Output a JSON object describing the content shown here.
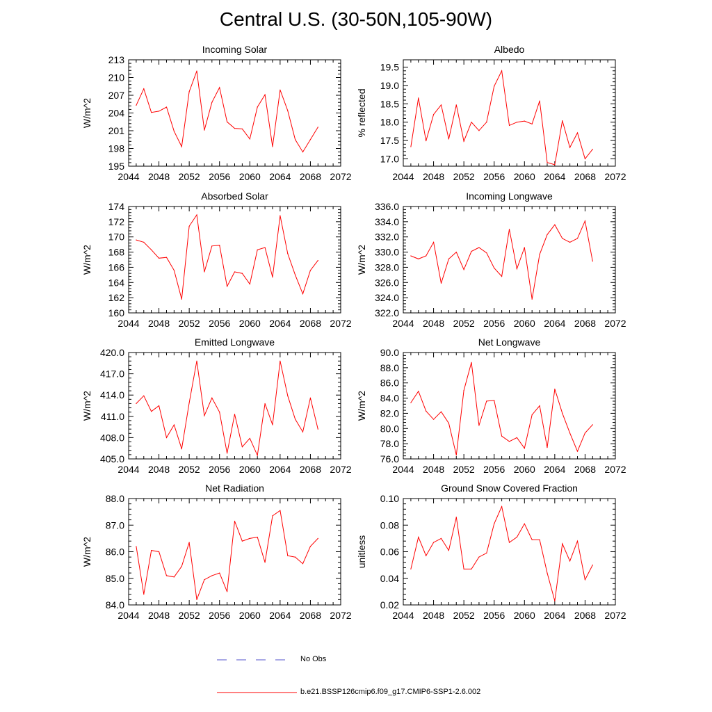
{
  "title": "Central U.S. (30-50N,105-90W)",
  "colors": {
    "model": "#ff0000",
    "obs": "#5555cc",
    "axis": "#000000"
  },
  "legend": {
    "obs_label": "No Obs",
    "model_label": "b.e21.BSSP126cmip6.f09_g17.CMIP6-SSP1-2.6.002"
  },
  "chart_data": [
    {
      "type": "line",
      "title": "Incoming Solar",
      "ylabel": "W/m^2",
      "xlim": [
        2044,
        2072
      ],
      "ylim": [
        195,
        213
      ],
      "xticks": [
        "2044",
        "2048",
        "2052",
        "2056",
        "2060",
        "2064",
        "2068",
        "2072"
      ],
      "yticks": [
        "195",
        "198",
        "201",
        "204",
        "207",
        "210",
        "213"
      ],
      "x": [
        2045,
        2046,
        2047,
        2048,
        2049,
        2050,
        2051,
        2052,
        2053,
        2054,
        2055,
        2056,
        2057,
        2058,
        2059,
        2060,
        2061,
        2062,
        2063,
        2064,
        2065,
        2066,
        2067,
        2068,
        2069
      ],
      "series": [
        {
          "values": [
            205.3,
            208.1,
            204.1,
            204.3,
            205.0,
            200.9,
            198.3,
            207.6,
            211.1,
            201.1,
            205.8,
            208.3,
            202.5,
            201.4,
            201.3,
            199.6,
            205.0,
            207.1,
            198.3,
            207.9,
            204.4,
            199.5,
            197.4,
            199.5,
            201.6
          ]
        }
      ]
    },
    {
      "type": "line",
      "title": "Albedo",
      "ylabel": "% reflected",
      "xlim": [
        2044,
        2072
      ],
      "ylim": [
        16.8,
        19.7
      ],
      "xticks": [
        "2044",
        "2048",
        "2052",
        "2056",
        "2060",
        "2064",
        "2068",
        "2072"
      ],
      "yticks": [
        "17.0",
        "17.5",
        "18.0",
        "18.5",
        "19.0",
        "19.5"
      ],
      "x": [
        2045,
        2046,
        2047,
        2048,
        2049,
        2050,
        2051,
        2052,
        2053,
        2054,
        2055,
        2056,
        2057,
        2058,
        2059,
        2060,
        2061,
        2062,
        2063,
        2064,
        2065,
        2066,
        2067,
        2068,
        2069
      ],
      "series": [
        {
          "values": [
            17.33,
            18.66,
            17.49,
            18.21,
            18.47,
            17.54,
            18.47,
            17.48,
            18.0,
            17.77,
            18.0,
            18.98,
            19.4,
            17.91,
            18.0,
            18.03,
            17.95,
            18.58,
            16.9,
            16.84,
            18.04,
            17.31,
            17.71,
            17.0,
            17.26
          ]
        }
      ]
    },
    {
      "type": "line",
      "title": "Absorbed Solar",
      "ylabel": "W/m^2",
      "xlim": [
        2044,
        2072
      ],
      "ylim": [
        160,
        174
      ],
      "xticks": [
        "2044",
        "2048",
        "2052",
        "2056",
        "2060",
        "2064",
        "2068",
        "2072"
      ],
      "yticks": [
        "160",
        "162",
        "164",
        "166",
        "168",
        "170",
        "172",
        "174"
      ],
      "x": [
        2045,
        2046,
        2047,
        2048,
        2049,
        2050,
        2051,
        2052,
        2053,
        2054,
        2055,
        2056,
        2057,
        2058,
        2059,
        2060,
        2061,
        2062,
        2063,
        2064,
        2065,
        2066,
        2067,
        2068,
        2069
      ],
      "series": [
        {
          "values": [
            169.6,
            169.3,
            168.3,
            167.2,
            167.3,
            165.6,
            161.8,
            171.4,
            172.9,
            165.4,
            168.8,
            168.9,
            163.5,
            165.4,
            165.2,
            163.8,
            168.3,
            168.6,
            164.7,
            172.8,
            167.8,
            165.0,
            162.5,
            165.6,
            166.9
          ]
        }
      ]
    },
    {
      "type": "line",
      "title": "Incoming Longwave",
      "ylabel": "W/m^2",
      "xlim": [
        2044,
        2072
      ],
      "ylim": [
        322,
        336
      ],
      "xticks": [
        "2044",
        "2048",
        "2052",
        "2056",
        "2060",
        "2064",
        "2068",
        "2072"
      ],
      "yticks": [
        "322.0",
        "324.0",
        "326.0",
        "328.0",
        "330.0",
        "332.0",
        "334.0",
        "336.0"
      ],
      "x": [
        2045,
        2046,
        2047,
        2048,
        2049,
        2050,
        2051,
        2052,
        2053,
        2054,
        2055,
        2056,
        2057,
        2058,
        2059,
        2060,
        2061,
        2062,
        2063,
        2064,
        2065,
        2066,
        2067,
        2068,
        2069
      ],
      "series": [
        {
          "values": [
            329.5,
            329.1,
            329.5,
            331.3,
            325.9,
            329.1,
            330.0,
            327.7,
            330.1,
            330.6,
            329.9,
            327.9,
            326.8,
            333.0,
            327.8,
            330.6,
            323.8,
            329.7,
            332.3,
            333.6,
            331.8,
            331.3,
            331.8,
            334.1,
            328.8
          ]
        }
      ]
    },
    {
      "type": "line",
      "title": "Emitted Longwave",
      "ylabel": "W/m^2",
      "xlim": [
        2044,
        2072
      ],
      "ylim": [
        405,
        420
      ],
      "xticks": [
        "2044",
        "2048",
        "2052",
        "2056",
        "2060",
        "2064",
        "2068",
        "2072"
      ],
      "yticks": [
        "405.0",
        "408.0",
        "411.0",
        "414.0",
        "417.0",
        "420.0"
      ],
      "x": [
        2045,
        2046,
        2047,
        2048,
        2049,
        2050,
        2051,
        2052,
        2053,
        2054,
        2055,
        2056,
        2057,
        2058,
        2059,
        2060,
        2061,
        2062,
        2063,
        2064,
        2065,
        2066,
        2067,
        2068,
        2069
      ],
      "series": [
        {
          "values": [
            412.8,
            413.9,
            411.7,
            412.5,
            408.0,
            409.8,
            406.4,
            412.9,
            418.8,
            411.1,
            413.6,
            411.6,
            405.8,
            411.3,
            406.7,
            407.9,
            405.5,
            412.8,
            409.8,
            418.8,
            413.9,
            410.6,
            408.8,
            413.6,
            409.2
          ]
        }
      ]
    },
    {
      "type": "line",
      "title": "Net Longwave",
      "ylabel": "W/m^2",
      "xlim": [
        2044,
        2072
      ],
      "ylim": [
        76,
        90
      ],
      "xticks": [
        "2044",
        "2048",
        "2052",
        "2056",
        "2060",
        "2064",
        "2068",
        "2072"
      ],
      "yticks": [
        "76.0",
        "78.0",
        "80.0",
        "82.0",
        "84.0",
        "86.0",
        "88.0",
        "90.0"
      ],
      "x": [
        2045,
        2046,
        2047,
        2048,
        2049,
        2050,
        2051,
        2052,
        2053,
        2054,
        2055,
        2056,
        2057,
        2058,
        2059,
        2060,
        2061,
        2062,
        2063,
        2064,
        2065,
        2066,
        2067,
        2068,
        2069
      ],
      "series": [
        {
          "values": [
            83.4,
            84.9,
            82.3,
            81.2,
            82.2,
            80.7,
            76.5,
            85.0,
            88.7,
            80.4,
            83.6,
            83.7,
            79.0,
            78.3,
            78.8,
            77.4,
            81.8,
            83.0,
            77.5,
            85.2,
            82.0,
            79.4,
            77.0,
            79.4,
            80.5
          ]
        }
      ]
    },
    {
      "type": "line",
      "title": "Net Radiation",
      "ylabel": "W/m^2",
      "xlim": [
        2044,
        2072
      ],
      "ylim": [
        84,
        88
      ],
      "xticks": [
        "2044",
        "2048",
        "2052",
        "2056",
        "2060",
        "2064",
        "2068",
        "2072"
      ],
      "yticks": [
        "84.0",
        "85.0",
        "86.0",
        "87.0",
        "88.0"
      ],
      "x": [
        2045,
        2046,
        2047,
        2048,
        2049,
        2050,
        2051,
        2052,
        2053,
        2054,
        2055,
        2056,
        2057,
        2058,
        2059,
        2060,
        2061,
        2062,
        2063,
        2064,
        2065,
        2066,
        2067,
        2068,
        2069
      ],
      "series": [
        {
          "values": [
            86.2,
            84.4,
            86.05,
            86.0,
            85.1,
            85.05,
            85.45,
            86.35,
            84.2,
            84.95,
            85.1,
            85.2,
            84.5,
            87.15,
            86.4,
            86.5,
            86.55,
            85.6,
            87.35,
            87.55,
            85.85,
            85.8,
            85.55,
            86.2,
            86.5
          ]
        }
      ]
    },
    {
      "type": "line",
      "title": "Ground Snow Covered Fraction",
      "ylabel": "unitless",
      "xlim": [
        2044,
        2072
      ],
      "ylim": [
        0.02,
        0.1
      ],
      "xticks": [
        "2044",
        "2048",
        "2052",
        "2056",
        "2060",
        "2064",
        "2068",
        "2072"
      ],
      "yticks": [
        "0.02",
        "0.04",
        "0.06",
        "0.08",
        "0.10"
      ],
      "x": [
        2045,
        2046,
        2047,
        2048,
        2049,
        2050,
        2051,
        2052,
        2053,
        2054,
        2055,
        2056,
        2057,
        2058,
        2059,
        2060,
        2061,
        2062,
        2063,
        2064,
        2065,
        2066,
        2067,
        2068,
        2069
      ],
      "series": [
        {
          "values": [
            0.047,
            0.071,
            0.057,
            0.067,
            0.07,
            0.061,
            0.086,
            0.047,
            0.047,
            0.056,
            0.059,
            0.081,
            0.094,
            0.067,
            0.071,
            0.081,
            0.069,
            0.069,
            0.044,
            0.023,
            0.066,
            0.053,
            0.068,
            0.039,
            0.05
          ]
        }
      ]
    }
  ]
}
